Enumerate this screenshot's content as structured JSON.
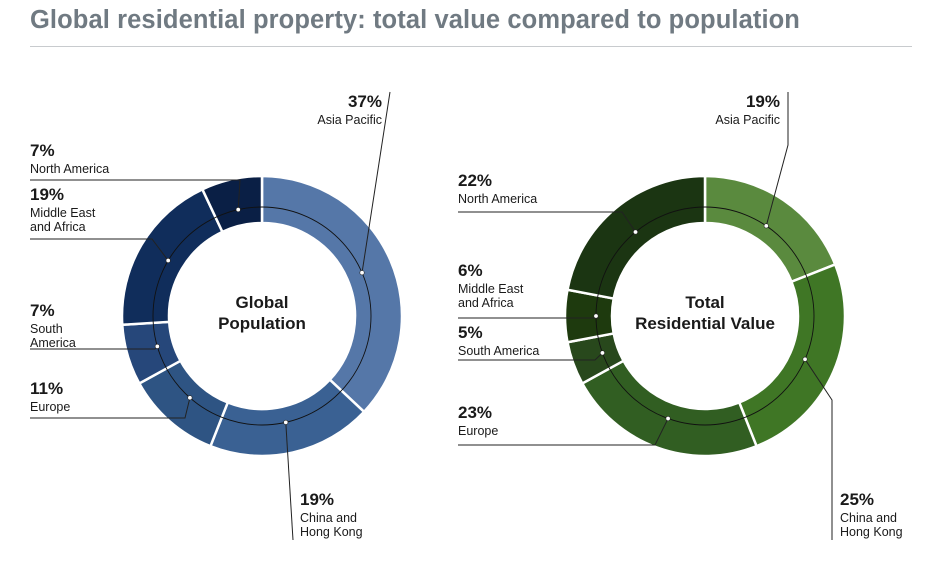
{
  "title": "Global residential property: total value compared to population",
  "chart_data": [
    {
      "type": "pie",
      "center_label": [
        "Global",
        "Population"
      ],
      "series": [
        {
          "category": [
            "Asia Pacific"
          ],
          "value": 37,
          "label": "37%",
          "color": "#5577a8"
        },
        {
          "category": [
            "China and",
            "Hong Kong"
          ],
          "value": 19,
          "label": "19%",
          "color": "#3a6193"
        },
        {
          "category": [
            "Europe"
          ],
          "value": 11,
          "label": "11%",
          "color": "#2e5483"
        },
        {
          "category": [
            "South",
            "America"
          ],
          "value": 7,
          "label": "7%",
          "color": "#26477a"
        },
        {
          "category": [
            "Middle East",
            "and Africa"
          ],
          "value": 19,
          "label": "19%",
          "color": "#102d5b"
        },
        {
          "category": [
            "North America"
          ],
          "value": 7,
          "label": "7%",
          "color": "#0a1f45"
        }
      ]
    },
    {
      "type": "pie",
      "center_label": [
        "Total",
        "Residential Value"
      ],
      "series": [
        {
          "category": [
            "Asia Pacific"
          ],
          "value": 19,
          "label": "19%",
          "color": "#5a8a3e"
        },
        {
          "category": [
            "China and",
            "Hong Kong"
          ],
          "value": 25,
          "label": "25%",
          "color": "#3f7625"
        },
        {
          "category": [
            "Europe"
          ],
          "value": 23,
          "label": "23%",
          "color": "#315e22"
        },
        {
          "category": [
            "South America"
          ],
          "value": 5,
          "label": "5%",
          "color": "#28481c"
        },
        {
          "category": [
            "Middle East",
            "and Africa"
          ],
          "value": 6,
          "label": "6%",
          "color": "#1e3a0e"
        },
        {
          "category": [
            "North America"
          ],
          "value": 22,
          "label": "22%",
          "color": "#1b3512"
        }
      ]
    }
  ]
}
